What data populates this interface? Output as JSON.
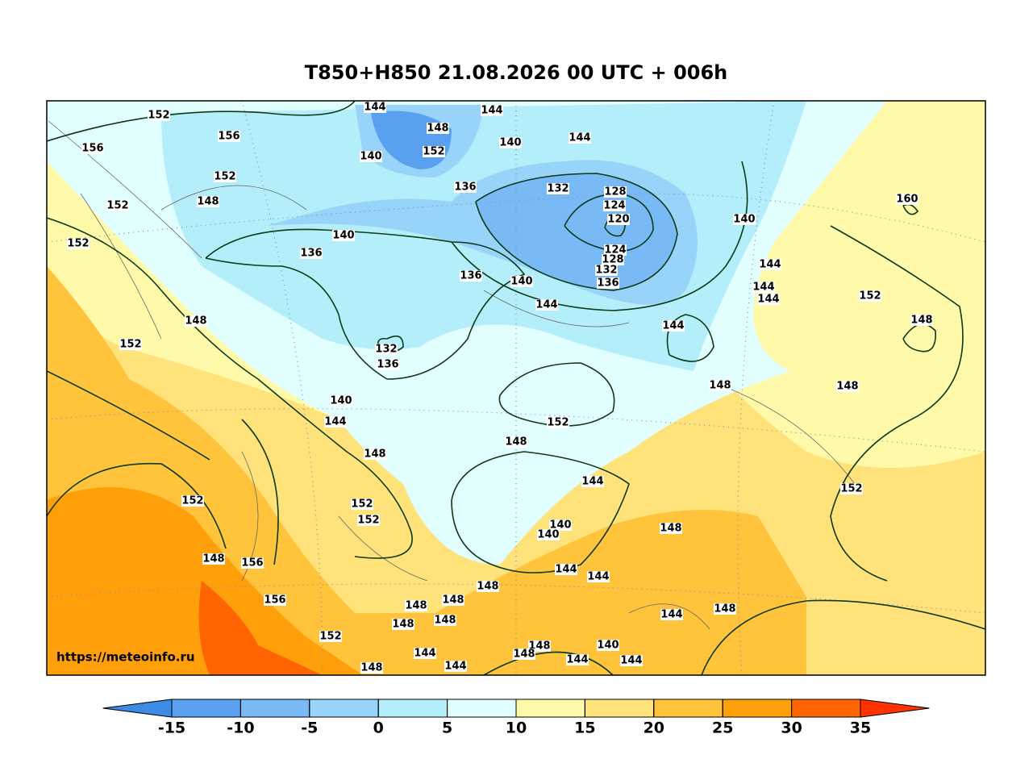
{
  "map": {
    "title": "T850+H850 21.08.2026 00 UTC + 006h",
    "watermark": "https://meteoinfo.ru",
    "contour_labels": [
      144,
      144,
      152,
      148,
      156,
      156,
      140,
      152,
      144,
      140,
      136,
      152,
      148,
      132,
      128,
      124,
      120,
      160,
      152,
      152,
      140,
      136,
      140,
      124,
      128,
      132,
      136,
      136,
      140,
      144,
      144,
      144,
      144,
      152,
      148,
      148,
      144,
      152,
      132,
      136,
      148,
      148,
      140,
      144,
      152,
      148,
      148,
      144,
      152,
      152,
      152,
      152,
      140,
      140,
      148,
      148,
      156,
      144,
      144,
      148,
      156,
      148,
      148,
      148,
      148,
      148,
      144,
      152,
      140,
      144,
      148,
      148,
      144,
      144,
      148,
      144
    ]
  },
  "colorbar": {
    "ticks": [
      -15,
      -10,
      -5,
      0,
      5,
      10,
      15,
      20,
      25,
      30,
      35
    ],
    "colors": [
      "#3c8ce6",
      "#5aa0f0",
      "#78b9f6",
      "#98d3fa",
      "#b4eefa",
      "#e1ffff",
      "#fffaaa",
      "#ffe27a",
      "#ffc33c",
      "#ffa00a",
      "#ff6400",
      "#ff3200"
    ]
  }
}
